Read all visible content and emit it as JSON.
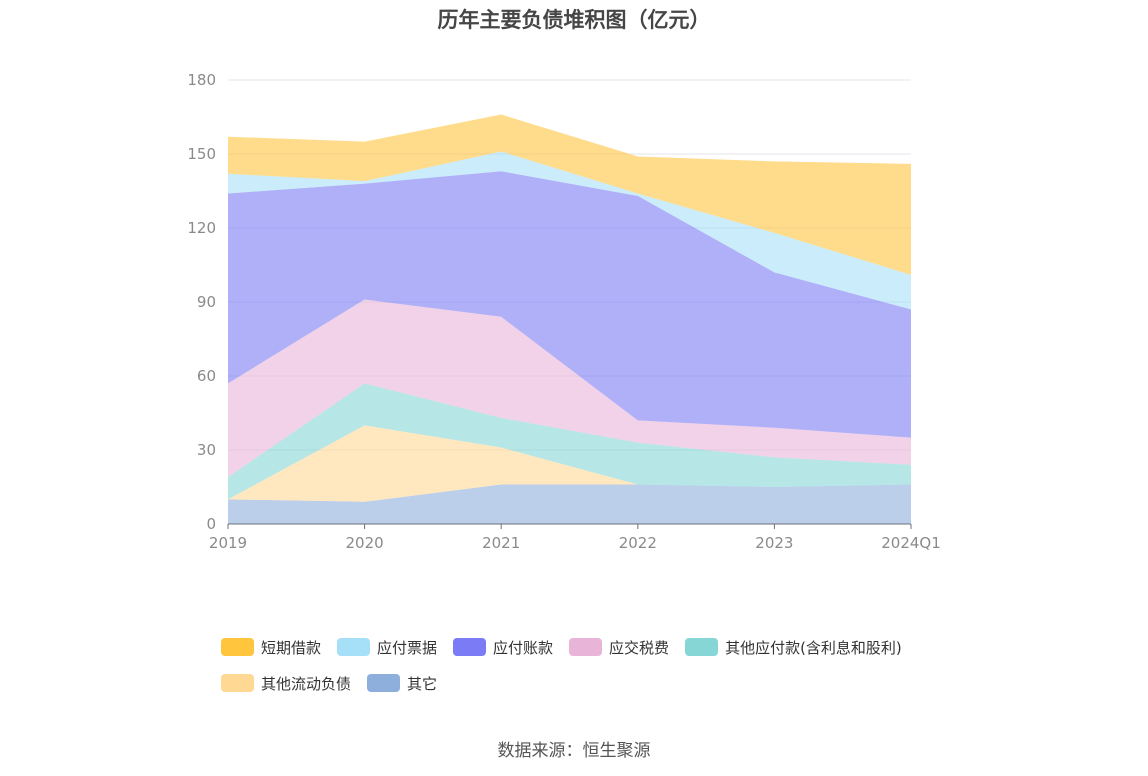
{
  "chart_data": {
    "type": "area",
    "stacked": true,
    "title": "历年主要负债堆积图（亿元）",
    "categories": [
      "2019",
      "2020",
      "2021",
      "2022",
      "2023",
      "2024Q1"
    ],
    "ylim": [
      0,
      180
    ],
    "yticks": [
      0,
      30,
      60,
      90,
      120,
      150,
      180
    ],
    "grid": true,
    "legend_position": "bottom",
    "series": [
      {
        "name": "其它",
        "color": "#8eaedc",
        "values": [
          10,
          9,
          16,
          16,
          15,
          16
        ]
      },
      {
        "name": "其他流动负债",
        "color": "#ffd894",
        "values": [
          0,
          31,
          15,
          0,
          0,
          0
        ]
      },
      {
        "name": "其他应付款(含利息和股利)",
        "color": "#86d6d6",
        "values": [
          9,
          17,
          12,
          17,
          12,
          8
        ]
      },
      {
        "name": "应交税费",
        "color": "#e8b4d8",
        "values": [
          38,
          34,
          41,
          9,
          12,
          11
        ]
      },
      {
        "name": "应付账款",
        "color": "#7b7cf5",
        "values": [
          77,
          47,
          59,
          91,
          63,
          52
        ]
      },
      {
        "name": "应付票据",
        "color": "#a6e0f8",
        "values": [
          8,
          1,
          8,
          1,
          16,
          14
        ]
      },
      {
        "name": "短期借款",
        "color": "#ffc53d",
        "values": [
          15,
          16,
          15,
          15,
          29,
          45
        ]
      }
    ]
  },
  "legend_order": [
    {
      "name": "短期借款",
      "color": "#ffc53d"
    },
    {
      "name": "应付票据",
      "color": "#a6e0f8"
    },
    {
      "name": "应付账款",
      "color": "#7b7cf5"
    },
    {
      "name": "应交税费",
      "color": "#e8b4d8"
    },
    {
      "name": "其他应付款(含利息和股利)",
      "color": "#86d6d6"
    },
    {
      "name": "其他流动负债",
      "color": "#ffd894"
    },
    {
      "name": "其它",
      "color": "#8eaedc"
    }
  ],
  "source_note": "数据来源：恒生聚源"
}
